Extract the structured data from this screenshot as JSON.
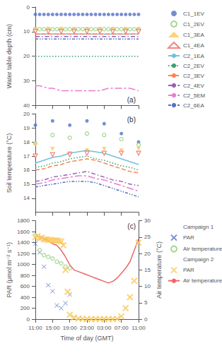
{
  "chart_data": [
    {
      "type": "line",
      "y_label": "Water table depth (cm)",
      "xlim": [
        0,
        24
      ],
      "xticks": [
        0,
        4,
        8,
        12,
        16,
        20,
        24
      ],
      "ylim": [
        40,
        0
      ],
      "yticks": [
        0,
        10,
        20,
        30,
        40
      ],
      "tick_labels": "y",
      "grid": false,
      "legend": "right",
      "annotations": [
        "(a)"
      ],
      "series": [
        {
          "name": "C1_1EV",
          "type": "scatter",
          "marker": "circle",
          "x": [
            0,
            1,
            2,
            3,
            4,
            5,
            6,
            7,
            8,
            9,
            10,
            11,
            12,
            13,
            14,
            15,
            16,
            17,
            18,
            19,
            20,
            21,
            22,
            23,
            24
          ],
          "values": [
            3,
            3,
            3,
            3,
            3,
            3,
            3,
            3,
            3,
            3,
            3,
            3,
            3,
            3,
            3,
            3,
            3,
            3,
            3,
            3,
            3,
            3,
            3,
            3,
            3
          ]
        },
        {
          "name": "C1_2EV",
          "type": "scatter",
          "marker": "open_circle",
          "x": [
            0,
            1,
            2,
            3,
            4,
            5,
            6,
            7,
            8,
            9,
            10,
            11,
            12,
            13,
            14,
            15,
            16,
            17,
            18,
            19,
            20,
            21,
            22,
            23,
            24
          ],
          "values": [
            9,
            9,
            9,
            9,
            9,
            9,
            9,
            9,
            9,
            9,
            9,
            9,
            9,
            9,
            9,
            9,
            9,
            9,
            9,
            9,
            9,
            9,
            9,
            9,
            9
          ]
        },
        {
          "name": "C1_3EA",
          "type": "scatter",
          "marker": "triangle_down",
          "x": [
            0,
            3,
            6,
            9,
            12,
            15,
            18,
            21,
            24
          ],
          "values": [
            9,
            9,
            9,
            9,
            9,
            9,
            9,
            9,
            9
          ]
        },
        {
          "name": "C1_4EA",
          "type": "scatter",
          "marker": "open_triangle_down",
          "x": [
            0,
            3,
            6,
            9,
            12,
            15,
            18,
            21,
            24
          ],
          "values": [
            10,
            10,
            10,
            10,
            10,
            10,
            10,
            10,
            10
          ]
        },
        {
          "name": "C2_1EA",
          "type": "line",
          "line_style": "solid",
          "x": [
            0,
            1,
            2,
            3,
            4,
            5,
            6,
            7,
            8,
            9,
            10,
            11,
            12,
            13,
            14,
            15,
            16,
            17,
            18,
            19,
            20,
            21,
            22,
            23,
            24
          ],
          "values": [
            11,
            11,
            11,
            11,
            11,
            11,
            11,
            11,
            11,
            11,
            11,
            11,
            11,
            11,
            11,
            11,
            11,
            11,
            11,
            11,
            11,
            11,
            11,
            11,
            11
          ]
        },
        {
          "name": "C2_2EV",
          "type": "line",
          "line_style": "dotted",
          "x": [
            0,
            1,
            2,
            3,
            4,
            5,
            6,
            7,
            8,
            9,
            10,
            11,
            12,
            13,
            14,
            15,
            16,
            17,
            18,
            19,
            20,
            21,
            22,
            23,
            24
          ],
          "values": [
            20,
            20,
            20,
            20,
            20,
            20,
            20,
            20,
            20,
            20,
            20,
            20,
            20,
            20,
            20,
            20,
            20,
            20,
            20,
            20,
            20,
            20,
            20,
            20,
            20
          ]
        },
        {
          "name": "C2_3EV",
          "type": "line",
          "line_style": "dashed",
          "x": [
            0,
            1,
            2,
            3,
            4,
            5,
            6,
            7,
            8,
            9,
            10,
            11,
            12,
            13,
            14,
            15,
            16,
            17,
            18,
            19,
            20,
            21,
            22,
            23,
            24
          ],
          "values": [
            11,
            11,
            11,
            11,
            11,
            11,
            11,
            11,
            11,
            11,
            11,
            11,
            11,
            11,
            11,
            11,
            11,
            11,
            11,
            11,
            11,
            11,
            11,
            11,
            11
          ]
        },
        {
          "name": "C2_4EV",
          "type": "line",
          "line_style": "dashdot",
          "x": [
            0,
            1,
            2,
            3,
            4,
            5,
            6,
            7,
            8,
            9,
            10,
            11,
            12,
            13,
            14,
            15,
            16,
            17,
            18,
            19,
            20,
            21,
            22,
            23,
            24
          ],
          "values": [
            12,
            12,
            12,
            12,
            12,
            12,
            12,
            12,
            12,
            12,
            12,
            12,
            12,
            12,
            12,
            12,
            12,
            12,
            12,
            12,
            12,
            12,
            12,
            12,
            12
          ]
        },
        {
          "name": "C2_5EM",
          "type": "line",
          "line_style": "long_dashdot",
          "x": [
            0,
            1,
            2,
            3,
            4,
            5,
            6,
            7,
            8,
            9,
            10,
            11,
            12,
            13,
            14,
            15,
            16,
            17,
            18,
            19,
            20,
            21,
            22,
            23,
            24
          ],
          "values": [
            32,
            32,
            32.5,
            33,
            33,
            33.5,
            34,
            34,
            34,
            34,
            34,
            34,
            34,
            34,
            34,
            34,
            33.5,
            33,
            33,
            33,
            33,
            33,
            33,
            33.5,
            34
          ]
        },
        {
          "name": "C2_6EA",
          "type": "line",
          "line_style": "dashdotdot",
          "x": [
            0,
            1,
            2,
            3,
            4,
            5,
            6,
            7,
            8,
            9,
            10,
            11,
            12,
            13,
            14,
            15,
            16,
            17,
            18,
            19,
            20,
            21,
            22,
            23,
            24
          ],
          "values": [
            13,
            13,
            13,
            13,
            13,
            13,
            13,
            13,
            13,
            13,
            13,
            13,
            13,
            13,
            13,
            13,
            13,
            13,
            13,
            13,
            13,
            13,
            13,
            13,
            13
          ]
        }
      ]
    },
    {
      "type": "line",
      "y_label": "Soil temperature (°C)",
      "xlim": [
        0,
        24
      ],
      "xticks": [
        0,
        4,
        8,
        12,
        16,
        20,
        24
      ],
      "ylim": [
        13,
        20
      ],
      "yticks": [
        14,
        15,
        16,
        17,
        18,
        19,
        20
      ],
      "tick_labels": "y",
      "grid": false,
      "legend": false,
      "annotations": [
        "(b)"
      ],
      "series": [
        {
          "name": "C1_1EV",
          "type": "scatter",
          "marker": "circle",
          "x": [
            0,
            4,
            8,
            12,
            16,
            20,
            24
          ],
          "values": [
            19.2,
            19.5,
            19.2,
            19.5,
            19.3,
            18.6,
            18.0
          ]
        },
        {
          "name": "C1_2EV",
          "type": "scatter",
          "marker": "open_circle",
          "x": [
            0,
            4,
            8,
            12,
            16,
            20,
            24
          ],
          "values": [
            17.9,
            18.5,
            18.3,
            18.6,
            18.5,
            18.2,
            17.8
          ]
        },
        {
          "name": "C1_3EA",
          "type": "scatter",
          "marker": "triangle_down",
          "x": [
            0,
            4,
            8,
            12,
            16,
            20,
            24
          ],
          "values": [
            17.8,
            17.5,
            17.2,
            17.4,
            17.5,
            17.4,
            17.5
          ]
        },
        {
          "name": "C1_4EA",
          "type": "scatter",
          "marker": "open_triangle_down",
          "x": [
            0,
            4,
            8,
            12,
            16,
            20,
            24
          ],
          "values": [
            17.0,
            17.1,
            17.1,
            17.2,
            17.2,
            17.2,
            17.2
          ]
        },
        {
          "name": "C2_1EA",
          "type": "line",
          "line_style": "solid",
          "x": [
            0,
            2,
            4,
            6,
            8,
            10,
            12,
            14,
            16,
            18,
            20,
            22,
            24
          ],
          "values": [
            16.5,
            16.7,
            16.9,
            17.0,
            17.2,
            17.3,
            17.4,
            17.3,
            17.2,
            17.0,
            16.8,
            16.6,
            16.4
          ]
        },
        {
          "name": "C2_2EV",
          "type": "line",
          "line_style": "dotted",
          "x": [
            0,
            2,
            4,
            6,
            8,
            10,
            12,
            14,
            16,
            18,
            20,
            22,
            24
          ],
          "values": [
            16.2,
            16.3,
            16.5,
            16.6,
            16.8,
            16.9,
            17.0,
            16.8,
            16.7,
            16.5,
            16.3,
            16.2,
            16.0
          ]
        },
        {
          "name": "C2_3EV",
          "type": "line",
          "line_style": "dashed",
          "x": [
            0,
            2,
            4,
            6,
            8,
            10,
            12,
            14,
            16,
            18,
            20,
            22,
            24
          ],
          "values": [
            16.0,
            16.1,
            16.3,
            16.4,
            16.6,
            16.7,
            16.8,
            16.7,
            16.5,
            16.3,
            16.1,
            15.9,
            15.8
          ]
        },
        {
          "name": "C2_4EV",
          "type": "line",
          "line_style": "dashdot",
          "x": [
            0,
            2,
            4,
            6,
            8,
            10,
            12,
            14,
            16,
            18,
            20,
            22,
            24
          ],
          "values": [
            15.2,
            15.3,
            15.5,
            15.6,
            15.7,
            15.8,
            15.9,
            15.7,
            15.5,
            15.3,
            15.2,
            15.0,
            14.9
          ]
        },
        {
          "name": "C2_5EM",
          "type": "line",
          "line_style": "long_dashdot",
          "x": [
            0,
            2,
            4,
            6,
            8,
            10,
            12,
            14,
            16,
            18,
            20,
            22,
            24
          ],
          "values": [
            15.0,
            15.1,
            15.3,
            15.4,
            15.5,
            15.6,
            15.6,
            15.4,
            15.3,
            15.1,
            14.9,
            14.7,
            14.5
          ]
        },
        {
          "name": "C2_6EA",
          "type": "line",
          "line_style": "dashdotdot",
          "x": [
            0,
            2,
            4,
            6,
            8,
            10,
            12,
            14,
            16,
            18,
            20,
            22,
            24
          ],
          "values": [
            14.8,
            14.9,
            15.0,
            15.1,
            15.2,
            15.2,
            15.2,
            15.1,
            14.9,
            14.7,
            14.5,
            14.3,
            14.1
          ]
        }
      ]
    },
    {
      "type": "scatter",
      "x_label": "Time of day (GMT)",
      "y_label": "PAR (μmol m⁻² s⁻¹)",
      "y2_label": "Air temperature (°C)",
      "xlim": [
        0,
        24
      ],
      "xticks": [
        {
          "value": 0,
          "label": "11:00"
        },
        {
          "value": 4,
          "label": "15:00"
        },
        {
          "value": 8,
          "label": "19:00"
        },
        {
          "value": 12,
          "label": "23:00"
        },
        {
          "value": 16,
          "label": "03:00"
        },
        {
          "value": 20,
          "label": "07:00"
        },
        {
          "value": 24,
          "label": "11:00"
        }
      ],
      "ylim": [
        0,
        1800
      ],
      "yticks": [
        0,
        200,
        400,
        600,
        800,
        1000,
        1200,
        1400,
        1600,
        1800
      ],
      "y2lim": [
        0,
        30
      ],
      "y2ticks": [
        0,
        5,
        10,
        15,
        20,
        25,
        30
      ],
      "grid": false,
      "legend": "right",
      "annotations": [
        "(c)"
      ],
      "series": [
        {
          "name": "PAR",
          "group": "Campaign 1",
          "type": "scatter",
          "marker": "x",
          "x": [
            0,
            1,
            2,
            3,
            4,
            5,
            6,
            7,
            8
          ],
          "values": [
            1380,
            1220,
            960,
            620,
            510,
            250,
            200,
            290,
            450
          ]
        },
        {
          "name": "Air temperature",
          "group": "Campaign 1",
          "type": "scatter",
          "marker": "open_circle",
          "axis": "y2",
          "x": [
            0,
            1,
            2,
            3,
            4,
            5,
            6,
            7,
            8
          ],
          "values": [
            25.5,
            21.0,
            19.5,
            19.0,
            18.5,
            17.5,
            17.0,
            16.0,
            15.5
          ]
        },
        {
          "name": "PAR",
          "group": "Campaign 2",
          "type": "scatter",
          "marker": "bold_x",
          "x": [
            0,
            0.5,
            1,
            1.5,
            2,
            2.5,
            3,
            3.5,
            4,
            4.5,
            5,
            5.5,
            6,
            6.5,
            7,
            7.5,
            8,
            9,
            10,
            11,
            12,
            13,
            14,
            15,
            16,
            17,
            18,
            19,
            20,
            21,
            22,
            23,
            24
          ],
          "values": [
            1500,
            1520,
            1480,
            1490,
            1460,
            1460,
            1450,
            1450,
            1440,
            1440,
            1440,
            1430,
            1420,
            1350,
            900,
            500,
            80,
            30,
            10,
            5,
            2,
            0,
            0,
            0,
            0,
            0,
            0,
            5,
            50,
            200,
            400,
            700,
            1400
          ]
        },
        {
          "name": "Air temperature",
          "group": "Campaign 2",
          "type": "line",
          "line_style": "solid",
          "axis": "y2",
          "x": [
            0,
            1,
            2,
            3,
            4,
            5,
            6,
            7,
            8,
            9,
            10,
            11,
            12,
            13,
            14,
            15,
            16,
            17,
            18,
            19,
            20,
            21,
            22,
            23,
            24
          ],
          "values": [
            25.5,
            25.0,
            24.5,
            24.0,
            23.0,
            22.5,
            21.0,
            19.0,
            16.5,
            15.0,
            14.5,
            14.0,
            13.5,
            13.0,
            12.5,
            12.0,
            11.5,
            11.0,
            11.5,
            12.5,
            14.0,
            15.5,
            17.5,
            21.0,
            24.5
          ]
        }
      ]
    }
  ]
}
